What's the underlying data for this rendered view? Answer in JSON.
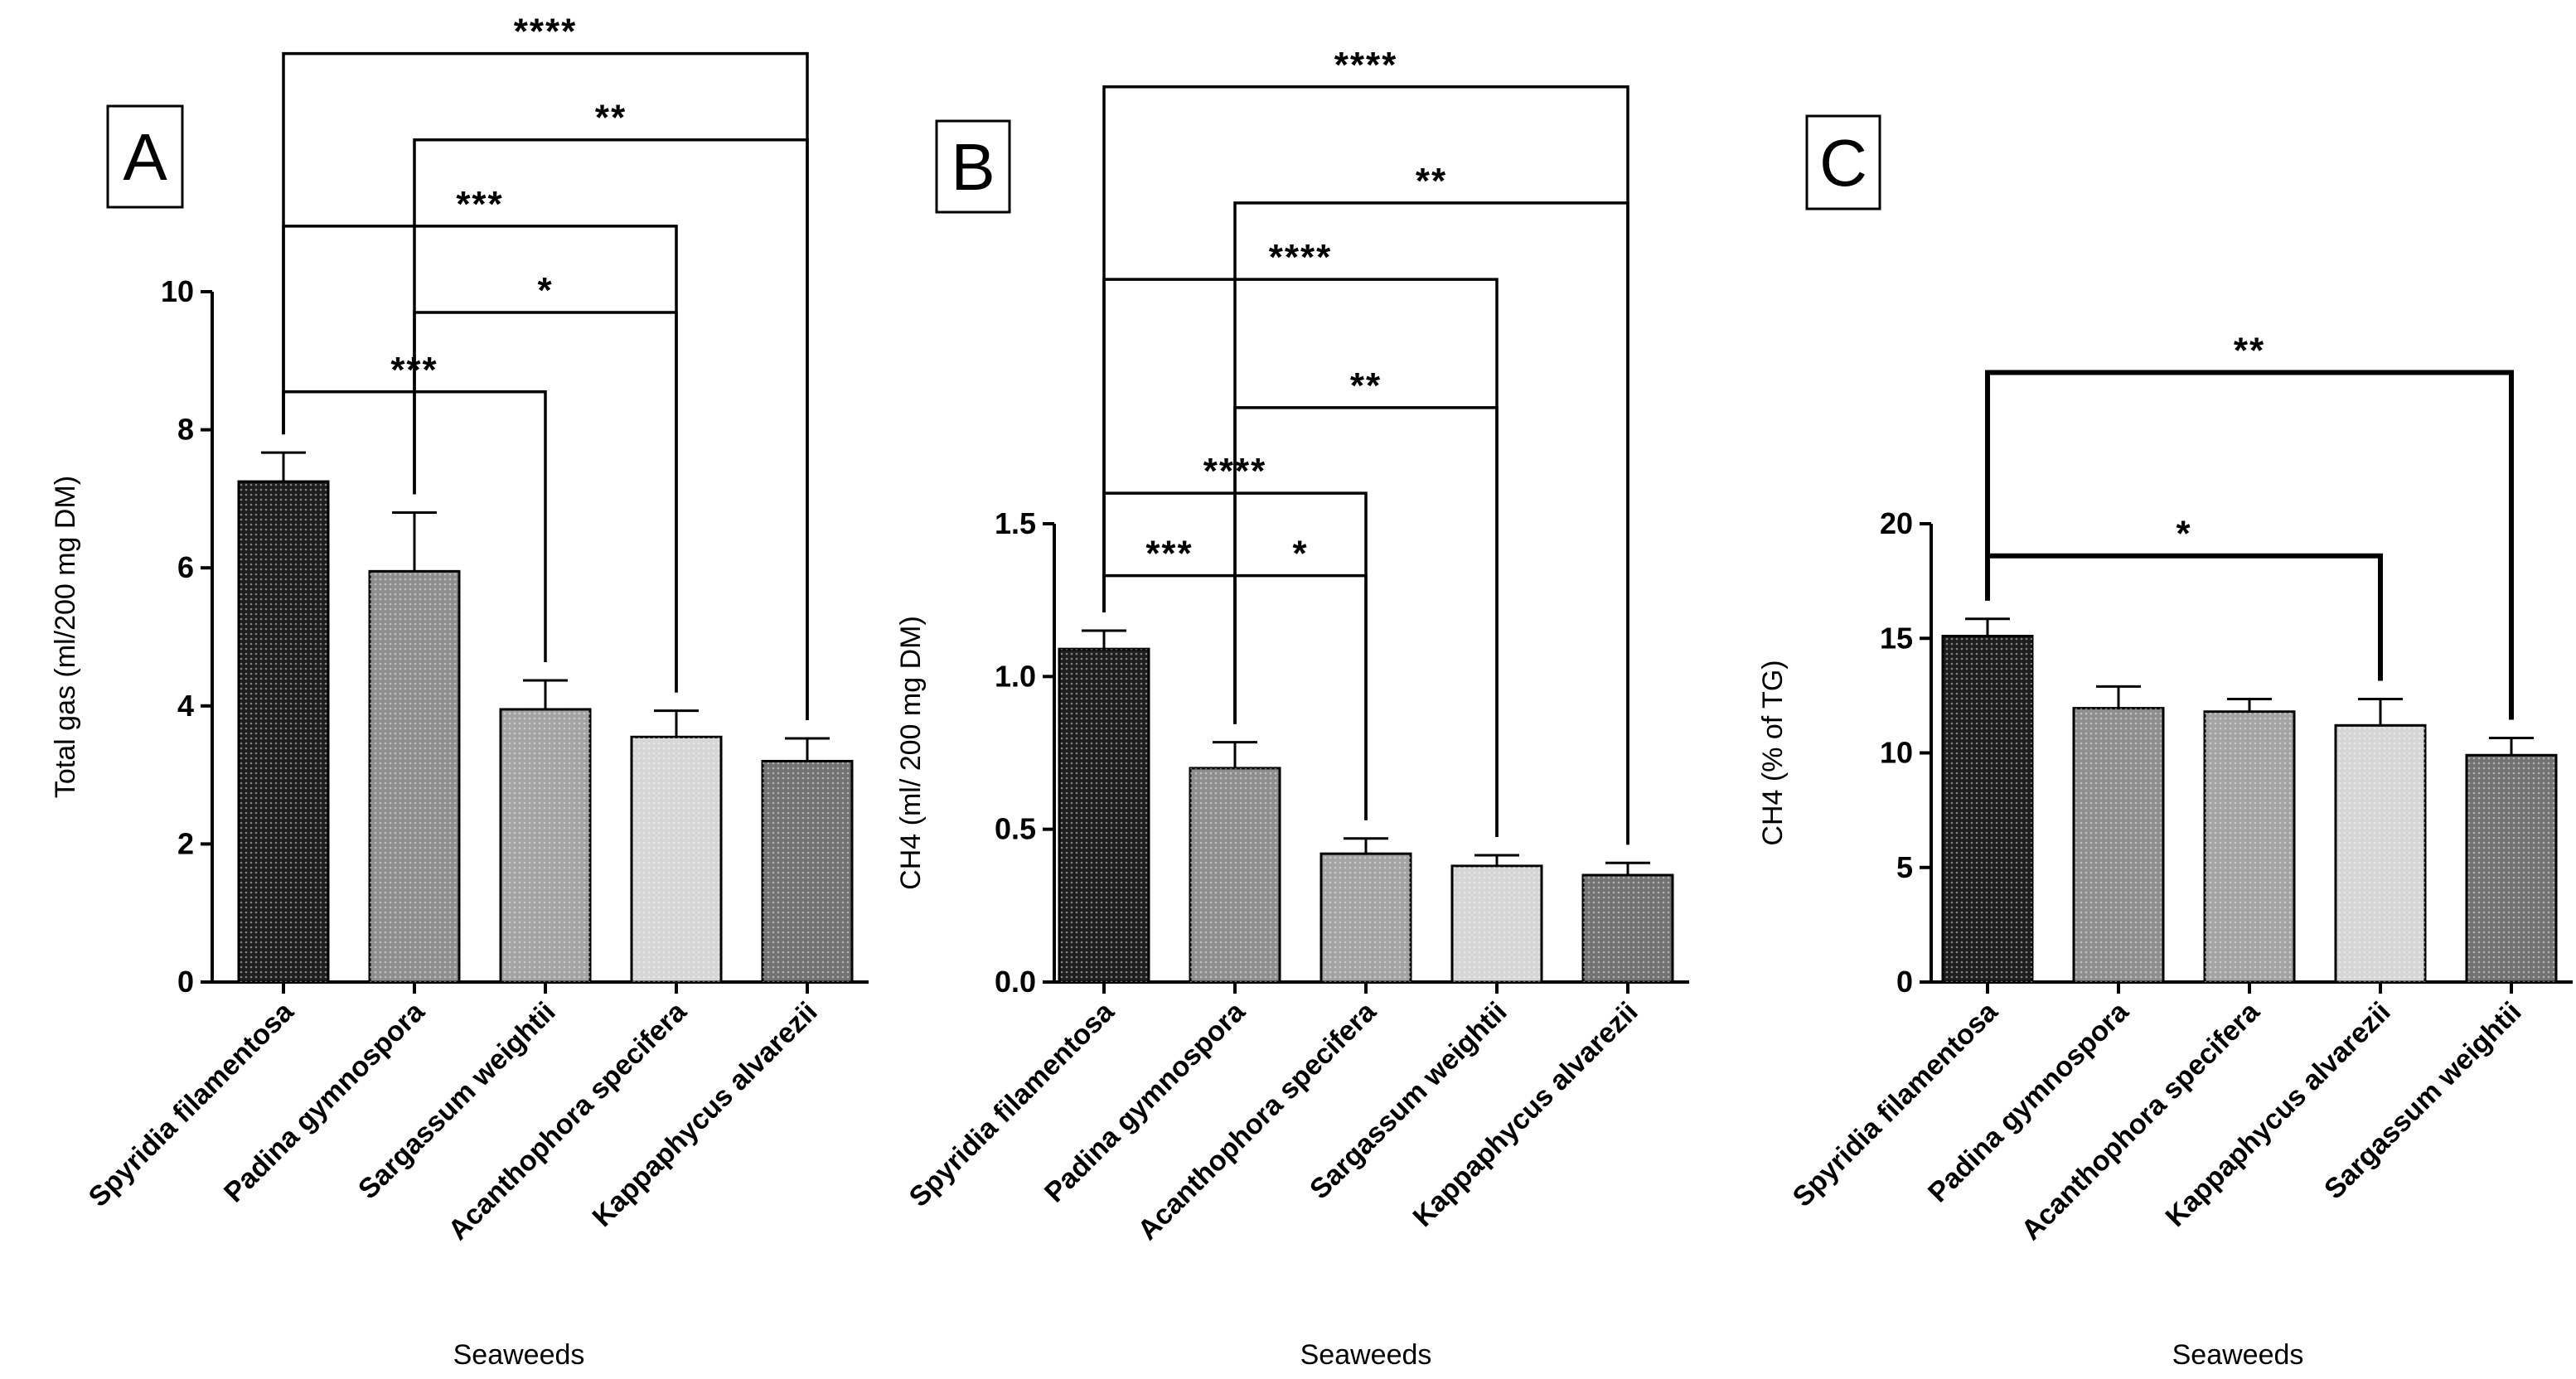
{
  "chart_data": [
    {
      "panel": "A",
      "type": "bar",
      "title": "",
      "xlabel": "Seaweeds",
      "ylabel": "Total gas (ml/200 mg DM)",
      "ylim": [
        0,
        10
      ],
      "yticks": [
        "0",
        "2",
        "4",
        "6",
        "8",
        "10"
      ],
      "categories": [
        "Spyridia filamentosa",
        "Padina gymnospora",
        "Sargassum weightii",
        "Acanthophora specifera",
        "Kappaphycus alvarezii"
      ],
      "values": [
        7.25,
        5.95,
        3.95,
        3.55,
        3.2
      ],
      "errors": [
        0.42,
        0.85,
        0.42,
        0.38,
        0.33
      ],
      "colors": [
        "#1e1e1e",
        "#8e8e8e",
        "#a3a3a3",
        "#d6d6d6",
        "#727272"
      ],
      "significance": [
        {
          "from": 0,
          "to": 2,
          "label": "***",
          "level": 8.55
        },
        {
          "from": 1,
          "to": 3,
          "label": "*",
          "level": 9.7
        },
        {
          "from": 0,
          "to": 3,
          "label": "***",
          "level": 10.95
        },
        {
          "from": 1,
          "to": 4,
          "label": "**",
          "level": 12.2
        },
        {
          "from": 0,
          "to": 4,
          "label": "****",
          "level": 13.45
        }
      ]
    },
    {
      "panel": "B",
      "type": "bar",
      "title": "",
      "xlabel": "Seaweeds",
      "ylabel": "CH4 (ml/ 200 mg DM)",
      "ylim": [
        0,
        1.5
      ],
      "yticks": [
        "0.0",
        "0.5",
        "1.0",
        "1.5"
      ],
      "categories": [
        "Spyridia filamentosa",
        "Padina gymnospora",
        "Acanthophora specifera",
        "Sargassum weightii",
        "Kappaphycus alvarezii"
      ],
      "values": [
        1.09,
        0.7,
        0.42,
        0.38,
        0.35
      ],
      "errors": [
        0.06,
        0.085,
        0.05,
        0.035,
        0.04
      ],
      "colors": [
        "#1e1e1e",
        "#8e8e8e",
        "#a3a3a3",
        "#d6d6d6",
        "#727272"
      ],
      "significance": [
        {
          "from": 0,
          "to": 1,
          "label": "***",
          "level": 1.33
        },
        {
          "from": 1,
          "to": 2,
          "label": "*",
          "level": 1.33
        },
        {
          "from": 0,
          "to": 2,
          "label": "****",
          "level": 1.6
        },
        {
          "from": 1,
          "to": 3,
          "label": "**",
          "level": 1.88
        },
        {
          "from": 0,
          "to": 3,
          "label": "****",
          "level": 2.3
        },
        {
          "from": 1,
          "to": 4,
          "label": "**",
          "level": 2.55
        },
        {
          "from": 0,
          "to": 4,
          "label": "****",
          "level": 2.93
        }
      ]
    },
    {
      "panel": "C",
      "type": "bar",
      "title": "",
      "xlabel": "Seaweeds",
      "ylabel": "CH4 (% of TG)",
      "ylim": [
        0,
        20
      ],
      "yticks": [
        "0",
        "5",
        "10",
        "15",
        "20"
      ],
      "categories": [
        "Spyridia filamentosa",
        "Padina gymnospora",
        "Acanthophora specifera",
        "Kappaphycus alvarezii",
        "Sargassum weightii"
      ],
      "values": [
        15.1,
        11.95,
        11.8,
        11.2,
        9.9
      ],
      "errors": [
        0.75,
        0.95,
        0.55,
        1.15,
        0.75
      ],
      "colors": [
        "#1e1e1e",
        "#8e8e8e",
        "#a3a3a3",
        "#d6d6d6",
        "#727272"
      ],
      "significance": [
        {
          "from": 0,
          "to": 3,
          "label": "*",
          "level": 18.6
        },
        {
          "from": 0,
          "to": 4,
          "label": "**",
          "level": 26.6
        }
      ]
    }
  ]
}
